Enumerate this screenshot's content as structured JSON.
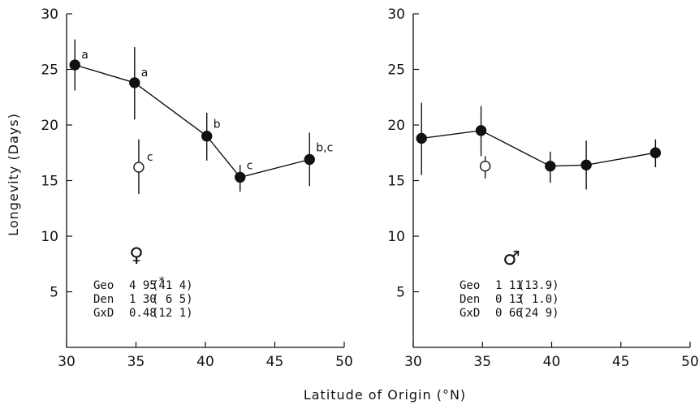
{
  "chart_data": [
    {
      "type": "line",
      "panel": "female",
      "ylabel": "Longevity (Days)",
      "xlabel": "Latitude of Origin (°N)",
      "xlim": [
        30,
        50
      ],
      "ylim": [
        0,
        30
      ],
      "xticks": [
        30,
        35,
        40,
        45,
        50
      ],
      "yticks": [
        5,
        10,
        15,
        20,
        25,
        30
      ],
      "sex_symbol": "♀",
      "series": [
        {
          "marker": "filled-circle",
          "points": [
            {
              "x": 30.6,
              "y": 25.4,
              "err_low": 23.1,
              "err_high": 27.7,
              "label": "a"
            },
            {
              "x": 34.9,
              "y": 23.8,
              "err_low": 20.5,
              "err_high": 27.0,
              "label": "a"
            },
            {
              "x": 40.1,
              "y": 19.0,
              "err_low": 16.8,
              "err_high": 21.1,
              "label": "b"
            },
            {
              "x": 42.5,
              "y": 15.3,
              "err_low": 14.0,
              "err_high": 16.4,
              "label": "c"
            },
            {
              "x": 47.5,
              "y": 16.9,
              "err_low": 14.5,
              "err_high": 19.3,
              "label": "b,c"
            }
          ]
        },
        {
          "marker": "open-circle",
          "points": [
            {
              "x": 35.2,
              "y": 16.2,
              "err_low": 13.8,
              "err_high": 18.7,
              "label": "c"
            }
          ]
        }
      ],
      "stats": [
        {
          "name": "Geo",
          "value": "4 95",
          "star": "*",
          "pct": "(41 4)"
        },
        {
          "name": "Den",
          "value": "1 30",
          "star": "",
          "pct": "( 6 5)"
        },
        {
          "name": "GxD",
          "value": "0.48",
          "star": "",
          "pct": "(12 1)"
        }
      ]
    },
    {
      "type": "line",
      "panel": "male",
      "ylabel": "",
      "xlabel": "Latitude of Origin (°N)",
      "xlim": [
        30,
        50
      ],
      "ylim": [
        0,
        30
      ],
      "xticks": [
        30,
        35,
        40,
        45,
        50
      ],
      "yticks": [
        5,
        10,
        15,
        20,
        25,
        30
      ],
      "sex_symbol": "♂",
      "series": [
        {
          "marker": "filled-circle",
          "points": [
            {
              "x": 30.6,
              "y": 18.8,
              "err_low": 15.5,
              "err_high": 22.0,
              "label": ""
            },
            {
              "x": 34.9,
              "y": 19.5,
              "err_low": 17.2,
              "err_high": 21.7,
              "label": ""
            },
            {
              "x": 39.9,
              "y": 16.3,
              "err_low": 14.8,
              "err_high": 17.6,
              "label": ""
            },
            {
              "x": 42.5,
              "y": 16.4,
              "err_low": 14.2,
              "err_high": 18.6,
              "label": ""
            },
            {
              "x": 47.5,
              "y": 17.5,
              "err_low": 16.2,
              "err_high": 18.7,
              "label": ""
            }
          ]
        },
        {
          "marker": "open-circle",
          "points": [
            {
              "x": 35.2,
              "y": 16.3,
              "err_low": 15.2,
              "err_high": 17.2,
              "label": ""
            }
          ]
        }
      ],
      "stats": [
        {
          "name": "Geo",
          "value": "1 11",
          "star": "",
          "pct": "(13.9)"
        },
        {
          "name": "Den",
          "value": "0 13",
          "star": "",
          "pct": "( 1.0)"
        },
        {
          "name": "GxD",
          "value": "0 66",
          "star": "",
          "pct": "(24 9)"
        }
      ]
    }
  ]
}
